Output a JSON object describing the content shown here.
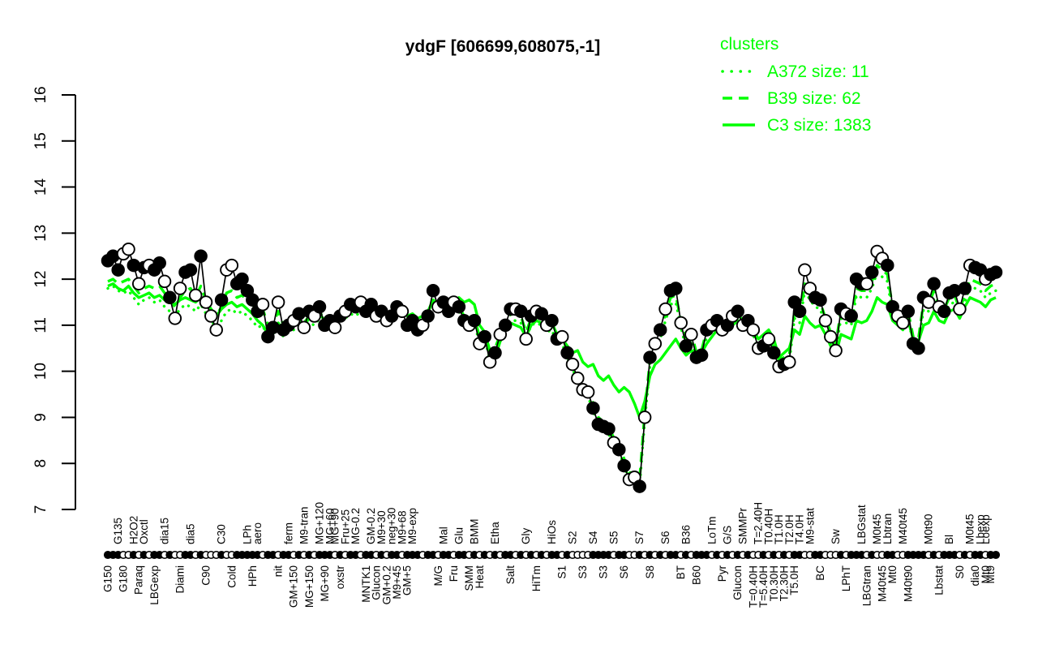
{
  "title": "ydgF [606699,608075,-1]",
  "legend": {
    "header": "clusters",
    "color": "#00FF00",
    "items": [
      {
        "name": "A372",
        "label": "A372 size: 11",
        "style": "dotted"
      },
      {
        "name": "B39",
        "label": "B39 size: 62",
        "style": "dashed"
      },
      {
        "name": "C3",
        "label": "C3 size: 1383",
        "style": "solid"
      }
    ]
  },
  "chart_data": {
    "type": "line",
    "title": "ydgF [606699,608075,-1]",
    "xlabel": "",
    "ylabel": "",
    "ylim": [
      7,
      16
    ],
    "yticks": [
      7,
      8,
      9,
      10,
      11,
      12,
      13,
      14,
      15,
      16
    ],
    "grid": false,
    "legend_position": "top-right",
    "colors": {
      "points": "#000000",
      "clusters": "#00FF00",
      "open_fill": "#ffffff"
    },
    "points": {
      "description": "gene expression profile across conditions; filled=1 black dot, 0=open circle",
      "values": [
        12.4,
        12.5,
        12.2,
        12.55,
        12.65,
        12.3,
        11.9,
        12.25,
        12.3,
        12.2,
        12.35,
        11.95,
        11.6,
        11.15,
        11.8,
        12.15,
        12.2,
        11.65,
        12.5,
        11.5,
        11.2,
        10.9,
        11.55,
        12.2,
        12.3,
        11.9,
        12.0,
        11.75,
        11.55,
        11.3,
        11.45,
        10.75,
        10.95,
        11.5,
        10.9,
        11.0,
        11.1,
        11.25,
        10.95,
        11.3,
        11.2,
        11.4,
        11.0,
        11.1,
        10.95,
        11.2,
        11.3,
        11.45,
        11.4,
        11.5,
        11.3,
        11.45,
        11.2,
        11.3,
        11.1,
        11.2,
        11.4,
        11.3,
        11.0,
        11.1,
        10.9,
        11.0,
        11.2,
        11.75,
        11.4,
        11.5,
        11.3,
        11.5,
        11.4,
        11.1,
        11.0,
        11.1,
        10.6,
        10.75,
        10.2,
        10.4,
        10.8,
        11.0,
        11.35,
        11.35,
        11.3,
        10.7,
        11.2,
        11.3,
        11.25,
        11.0,
        11.1,
        10.7,
        10.75,
        10.4,
        10.15,
        9.85,
        9.6,
        9.55,
        9.2,
        8.85,
        8.8,
        8.75,
        8.45,
        8.3,
        7.95,
        7.65,
        7.7,
        7.5,
        9.0,
        10.3,
        10.6,
        10.9,
        11.35,
        11.75,
        11.8,
        11.05,
        10.55,
        10.8,
        10.3,
        10.35,
        10.9,
        11.0,
        11.1,
        10.9,
        11.0,
        11.2,
        11.3,
        11.0,
        11.1,
        10.9,
        10.5,
        10.55,
        10.7,
        10.4,
        10.1,
        10.15,
        10.2,
        11.5,
        11.3,
        12.2,
        11.8,
        11.6,
        11.55,
        11.1,
        10.75,
        10.45,
        11.35,
        11.25,
        11.2,
        12.0,
        11.9,
        11.9,
        12.15,
        12.6,
        12.45,
        12.3,
        11.4,
        11.2,
        11.05,
        11.3,
        10.6,
        10.5,
        11.6,
        11.5,
        11.9,
        11.4,
        11.3,
        11.7,
        11.75,
        11.35,
        11.8,
        12.3,
        12.25,
        12.2,
        12.0,
        12.1,
        12.15
      ],
      "filled": [
        1,
        1,
        1,
        0,
        0,
        1,
        0,
        1,
        0,
        1,
        1,
        0,
        1,
        0,
        0,
        1,
        1,
        0,
        1,
        0,
        0,
        0,
        1,
        0,
        0,
        1,
        1,
        1,
        1,
        1,
        0,
        1,
        1,
        0,
        1,
        1,
        0,
        1,
        0,
        1,
        0,
        1,
        1,
        1,
        0,
        1,
        0,
        1,
        1,
        0,
        1,
        1,
        0,
        1,
        0,
        1,
        1,
        0,
        1,
        1,
        1,
        0,
        1,
        1,
        0,
        1,
        1,
        0,
        1,
        1,
        0,
        1,
        0,
        1,
        0,
        1,
        0,
        1,
        1,
        0,
        1,
        0,
        1,
        0,
        1,
        0,
        1,
        1,
        0,
        1,
        0,
        0,
        0,
        0,
        1,
        1,
        1,
        1,
        0,
        1,
        1,
        0,
        0,
        1,
        0,
        1,
        0,
        1,
        0,
        1,
        1,
        0,
        1,
        0,
        1,
        1,
        1,
        0,
        1,
        0,
        1,
        0,
        1,
        0,
        1,
        0,
        0,
        1,
        0,
        1,
        0,
        1,
        0,
        1,
        1,
        0,
        0,
        1,
        1,
        0,
        0,
        0,
        1,
        0,
        1,
        1,
        1,
        0,
        1,
        0,
        0,
        1,
        1,
        0,
        0,
        1,
        1,
        1,
        1,
        0,
        1,
        0,
        1,
        1,
        1,
        0,
        1,
        0,
        1,
        1,
        0,
        1,
        1
      ]
    },
    "series": [
      {
        "name": "A372",
        "size": 11,
        "style": "dotted",
        "values": [
          11.8,
          11.85,
          11.75,
          11.7,
          11.75,
          11.6,
          11.45,
          11.55,
          11.6,
          11.5,
          11.55,
          11.4,
          11.3,
          11.2,
          11.35,
          11.45,
          11.4,
          11.3,
          11.45,
          11.25,
          11.1,
          10.95,
          11.1,
          11.3,
          11.35,
          11.25,
          11.3,
          11.2,
          11.1,
          10.95,
          11.0,
          10.7,
          10.8,
          11.0,
          10.75,
          10.85,
          10.9,
          11.0,
          10.9,
          11.05,
          11.0,
          11.15,
          11.0,
          11.05,
          10.95,
          11.1,
          11.15,
          11.25,
          11.2,
          11.3,
          11.2,
          11.3,
          11.15,
          11.2,
          11.05,
          11.15,
          11.25,
          11.2,
          11.0,
          11.05,
          10.9,
          11.0,
          11.15,
          11.5,
          11.3,
          11.35,
          11.25,
          11.35,
          11.3,
          11.1,
          11.0,
          11.05,
          10.6,
          10.7,
          10.25,
          10.35,
          10.65,
          10.85,
          11.1,
          11.1,
          11.05,
          10.7,
          11.0,
          11.05,
          11.0,
          10.85,
          10.9,
          10.6,
          10.6,
          10.3,
          10.05,
          9.8,
          9.55,
          9.45,
          9.15,
          8.85,
          8.75,
          8.65,
          8.4,
          8.25,
          7.95,
          7.65,
          7.65,
          7.5,
          8.95,
          10.1,
          10.4,
          10.7,
          11.1,
          11.45,
          11.5,
          10.95,
          10.5,
          10.7,
          10.25,
          10.3,
          10.75,
          10.85,
          10.95,
          10.8,
          10.9,
          11.05,
          11.15,
          10.9,
          11.0,
          10.8,
          10.45,
          10.5,
          10.6,
          10.35,
          10.1,
          10.15,
          10.2,
          11.15,
          11.05,
          11.75,
          11.55,
          11.4,
          11.35,
          11.0,
          10.7,
          10.45,
          11.15,
          11.05,
          11.0,
          11.65,
          11.6,
          11.6,
          11.8,
          12.15,
          12.05,
          11.95,
          11.25,
          11.1,
          10.95,
          11.15,
          10.6,
          10.55,
          11.35,
          11.3,
          11.6,
          11.25,
          11.2,
          11.45,
          11.5,
          11.2,
          11.5,
          11.85,
          11.8,
          11.75,
          11.6,
          11.7,
          11.75
        ]
      },
      {
        "name": "B39",
        "size": 62,
        "style": "dashed",
        "values": [
          11.95,
          12.0,
          11.9,
          11.95,
          12.0,
          11.85,
          11.7,
          11.8,
          11.85,
          11.8,
          11.85,
          11.7,
          11.55,
          11.4,
          11.6,
          11.75,
          11.8,
          11.6,
          11.85,
          11.55,
          11.35,
          11.2,
          11.4,
          11.7,
          11.75,
          11.6,
          11.65,
          11.55,
          11.45,
          11.3,
          11.35,
          11.0,
          11.05,
          11.3,
          11.0,
          11.05,
          11.1,
          11.2,
          11.05,
          11.2,
          11.15,
          11.3,
          11.1,
          11.15,
          11.05,
          11.2,
          11.25,
          11.35,
          11.3,
          11.4,
          11.3,
          11.4,
          11.25,
          11.3,
          11.15,
          11.25,
          11.35,
          11.3,
          11.1,
          11.15,
          11.0,
          11.1,
          11.25,
          11.6,
          11.4,
          11.45,
          11.35,
          11.45,
          11.4,
          11.2,
          11.1,
          11.15,
          10.75,
          10.85,
          10.4,
          10.5,
          10.8,
          11.0,
          11.25,
          11.25,
          11.2,
          10.85,
          11.15,
          11.2,
          11.15,
          11.0,
          11.05,
          10.75,
          10.75,
          10.45,
          10.2,
          9.95,
          9.7,
          9.6,
          9.3,
          9.0,
          8.9,
          8.8,
          8.55,
          8.4,
          8.1,
          7.8,
          7.8,
          7.65,
          9.1,
          10.25,
          10.55,
          10.85,
          11.25,
          11.6,
          11.65,
          11.1,
          10.65,
          10.85,
          10.4,
          10.45,
          10.9,
          11.0,
          11.1,
          10.95,
          11.05,
          11.2,
          11.3,
          11.05,
          11.15,
          10.95,
          10.6,
          10.65,
          10.75,
          10.5,
          10.25,
          10.3,
          10.35,
          11.3,
          11.2,
          11.9,
          11.7,
          11.55,
          11.5,
          11.15,
          10.85,
          10.6,
          11.3,
          11.2,
          11.15,
          11.8,
          11.75,
          11.75,
          11.95,
          12.3,
          12.2,
          12.1,
          11.4,
          11.25,
          11.1,
          11.3,
          10.75,
          10.7,
          11.5,
          11.45,
          11.75,
          11.4,
          11.35,
          11.6,
          11.65,
          11.35,
          11.65,
          12.0,
          11.95,
          11.9,
          11.75,
          11.85,
          11.9
        ]
      },
      {
        "name": "C3",
        "size": 1383,
        "style": "solid",
        "values": [
          11.85,
          11.9,
          11.8,
          11.75,
          11.85,
          11.7,
          11.6,
          11.65,
          11.7,
          11.6,
          11.65,
          11.55,
          11.5,
          11.45,
          11.55,
          11.6,
          11.55,
          11.5,
          11.6,
          11.45,
          11.35,
          11.2,
          11.35,
          11.45,
          11.5,
          11.4,
          11.45,
          11.35,
          11.25,
          11.1,
          11.0,
          10.8,
          10.9,
          11.05,
          10.85,
          10.95,
          11.0,
          11.1,
          11.0,
          11.15,
          11.1,
          11.25,
          11.1,
          11.2,
          11.1,
          11.25,
          11.3,
          11.4,
          11.35,
          11.45,
          11.35,
          11.4,
          11.3,
          11.35,
          11.25,
          11.3,
          11.45,
          11.35,
          11.2,
          11.25,
          11.15,
          11.2,
          11.3,
          11.55,
          11.4,
          11.45,
          11.35,
          11.45,
          11.6,
          11.5,
          11.55,
          11.45,
          11.0,
          10.85,
          10.45,
          10.3,
          10.65,
          10.9,
          11.05,
          11.0,
          10.95,
          10.75,
          11.0,
          11.1,
          11.05,
          10.95,
          11.05,
          10.8,
          10.7,
          10.55,
          10.4,
          10.45,
          10.2,
          10.1,
          10.15,
          9.9,
          9.8,
          9.9,
          9.7,
          9.55,
          9.65,
          9.55,
          9.3,
          9.0,
          9.35,
          9.9,
          10.15,
          10.25,
          10.4,
          10.55,
          10.7,
          10.5,
          10.35,
          10.45,
          10.3,
          10.4,
          10.6,
          10.75,
          10.9,
          10.8,
          10.9,
          11.0,
          11.1,
          10.95,
          11.05,
          10.9,
          10.7,
          10.8,
          10.9,
          10.7,
          10.3,
          10.4,
          10.5,
          10.9,
          10.8,
          11.2,
          11.05,
          10.95,
          11.0,
          10.8,
          10.55,
          10.35,
          10.8,
          10.75,
          10.7,
          11.1,
          11.05,
          11.1,
          11.3,
          11.6,
          11.5,
          11.45,
          11.1,
          11.0,
          10.9,
          11.1,
          10.7,
          10.65,
          11.0,
          11.05,
          11.3,
          11.1,
          11.05,
          11.3,
          11.35,
          11.15,
          11.4,
          11.6,
          11.55,
          11.5,
          11.4,
          11.55,
          11.6
        ]
      }
    ],
    "x_labels_top": [
      [
        2,
        "G135"
      ],
      [
        5,
        "H2O2"
      ],
      [
        7,
        "Oxctl"
      ],
      [
        11,
        "dia15"
      ],
      [
        16,
        "dia5"
      ],
      [
        22,
        "C30"
      ],
      [
        27,
        "LPh"
      ],
      [
        29,
        "aero"
      ],
      [
        35,
        "ferm"
      ],
      [
        38,
        "M9-tran"
      ],
      [
        41,
        "MG+120"
      ],
      [
        43,
        "MG+60"
      ],
      [
        44,
        "MG+90"
      ],
      [
        46,
        "Fru+25"
      ],
      [
        48,
        "MG-0.2"
      ],
      [
        51,
        "GM-0.2"
      ],
      [
        53,
        "M9+30"
      ],
      [
        55,
        "neg+30"
      ],
      [
        57,
        "M9+68"
      ],
      [
        59,
        "M9-exp"
      ],
      [
        65,
        "Mal"
      ],
      [
        68,
        "Glu"
      ],
      [
        71,
        "BMM"
      ],
      [
        75,
        "Etha"
      ],
      [
        81,
        "Gly"
      ],
      [
        86,
        "HiOs"
      ],
      [
        90,
        "S2"
      ],
      [
        94,
        "S4"
      ],
      [
        98,
        "S5"
      ],
      [
        103,
        "S7"
      ],
      [
        108,
        "S6"
      ],
      [
        112,
        "B36"
      ],
      [
        117,
        "LoTm"
      ],
      [
        120,
        "G/S"
      ],
      [
        123,
        "SMMPr"
      ],
      [
        126,
        "T=2.40H"
      ],
      [
        128,
        "T0.40H"
      ],
      [
        130,
        "T1.0H"
      ],
      [
        132,
        "T2.0H"
      ],
      [
        134,
        "T4.0H"
      ],
      [
        136,
        "M9-stat"
      ],
      [
        141,
        "Sw"
      ],
      [
        146,
        "LBGstat"
      ],
      [
        149,
        "M0t45"
      ],
      [
        151,
        "Lbtran"
      ],
      [
        154,
        "M40t45"
      ],
      [
        159,
        "M0t90"
      ],
      [
        163,
        "Bl"
      ],
      [
        167,
        "M0t45"
      ],
      [
        169,
        "Lbexp"
      ],
      [
        170,
        "Loexp"
      ]
    ],
    "x_labels_bottom": [
      [
        0,
        "G150"
      ],
      [
        3,
        "G180"
      ],
      [
        6,
        "Paraq"
      ],
      [
        9,
        "LBGexp"
      ],
      [
        14,
        "Diami"
      ],
      [
        19,
        "C90"
      ],
      [
        24,
        "Cold"
      ],
      [
        28,
        "HPh"
      ],
      [
        33,
        "nit"
      ],
      [
        36,
        "GM+150"
      ],
      [
        39,
        "MG+150"
      ],
      [
        42,
        "MG+90"
      ],
      [
        45,
        "oxstr"
      ],
      [
        50,
        "MNTK1"
      ],
      [
        52,
        "Glucon"
      ],
      [
        54,
        "GM+0.2"
      ],
      [
        56,
        "M9+45"
      ],
      [
        58,
        "GM+5"
      ],
      [
        64,
        "M/G"
      ],
      [
        67,
        "Fru"
      ],
      [
        70,
        "SMM"
      ],
      [
        72,
        "Heat"
      ],
      [
        78,
        "Salt"
      ],
      [
        83,
        "HiTm"
      ],
      [
        88,
        "S1"
      ],
      [
        92,
        "S3"
      ],
      [
        96,
        "S3"
      ],
      [
        100,
        "S6"
      ],
      [
        105,
        "S8"
      ],
      [
        111,
        "BT"
      ],
      [
        114,
        "B60"
      ],
      [
        119,
        "Pyr"
      ],
      [
        122,
        "Glucon"
      ],
      [
        125,
        "T=0.40H"
      ],
      [
        127,
        "T=5.40H"
      ],
      [
        129,
        "T0.30H"
      ],
      [
        131,
        "T2.30H"
      ],
      [
        133,
        "T5.0H"
      ],
      [
        138,
        "BC"
      ],
      [
        143,
        "LPhT"
      ],
      [
        147,
        "LBGtran"
      ],
      [
        150,
        "M40t45"
      ],
      [
        152,
        "Mt0"
      ],
      [
        155,
        "M40t90"
      ],
      [
        161,
        "Lbstat"
      ],
      [
        165,
        "S0"
      ],
      [
        168,
        "dia0"
      ],
      [
        170,
        "Mt0"
      ],
      [
        171,
        "Mt9"
      ]
    ]
  }
}
